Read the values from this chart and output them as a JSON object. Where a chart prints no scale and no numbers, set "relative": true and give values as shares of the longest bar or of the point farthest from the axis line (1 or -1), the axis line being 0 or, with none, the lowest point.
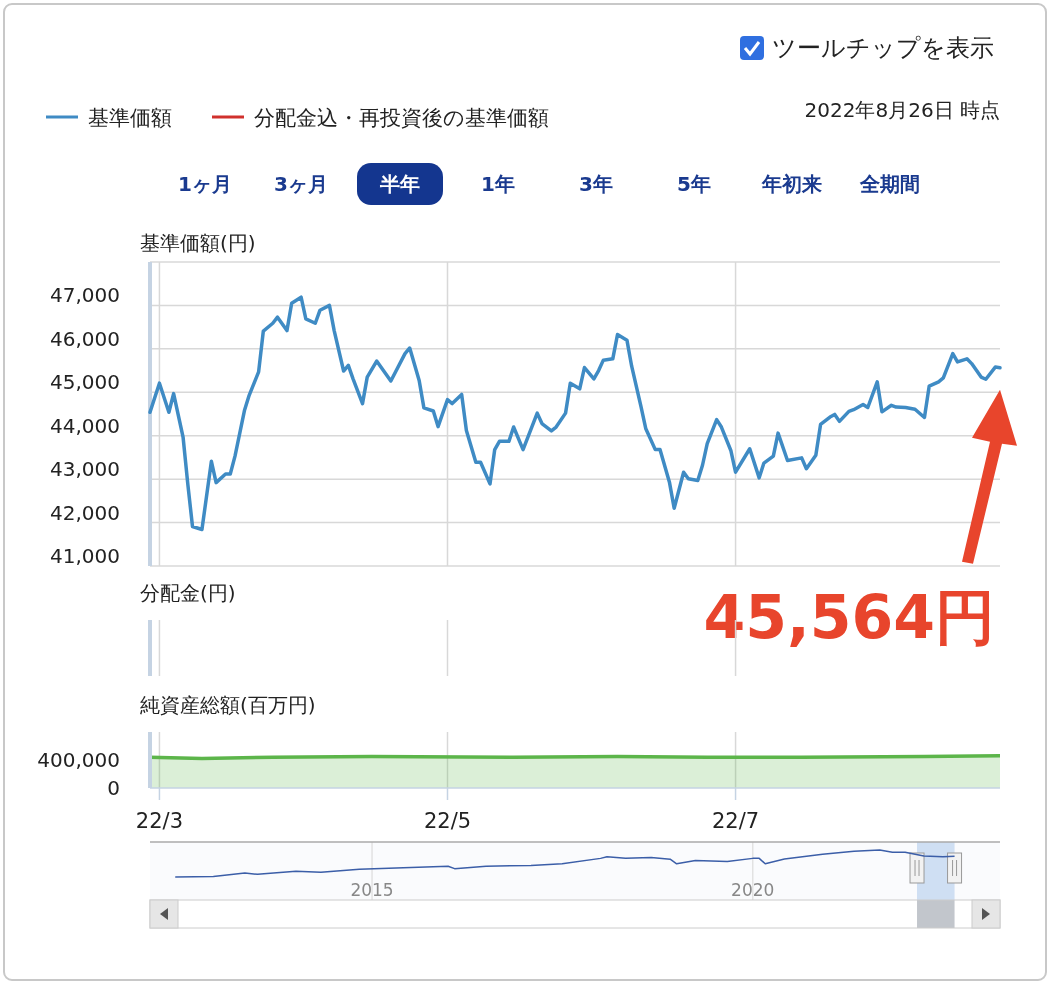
{
  "chart_data": [
    {
      "type": "line",
      "title": "基準価額(円)",
      "legend": "top",
      "annotations": [
        "ツールチップを表示",
        "2022年8月26日 時点",
        "1ヶ月",
        "3ヶ月",
        "半年",
        "1年",
        "3年",
        "5年",
        "年初来",
        "全期間",
        "45,564円"
      ],
      "xlim": [
        "2022-02-27",
        "2022-08-26"
      ],
      "tick_labels": "y",
      "ylim": [
        41000,
        48000
      ],
      "yticks": [
        {
          "value": 41000,
          "label": "41,000"
        },
        {
          "value": 42000,
          "label": "42,000"
        },
        {
          "value": 43000,
          "label": "43,000"
        },
        {
          "value": 44000,
          "label": "44,000"
        },
        {
          "value": 45000,
          "label": "45,000"
        },
        {
          "value": 46000,
          "label": "46,000"
        },
        {
          "value": 47000,
          "label": "47,000"
        }
      ],
      "grid": true,
      "x": [
        "2022-02-27",
        "2022-03-01",
        "2022-03-03",
        "2022-03-04",
        "2022-03-06",
        "2022-03-07",
        "2022-03-08",
        "2022-03-10",
        "2022-03-12",
        "2022-03-13",
        "2022-03-15",
        "2022-03-16",
        "2022-03-17",
        "2022-03-19",
        "2022-03-20",
        "2022-03-22",
        "2022-03-23",
        "2022-03-25",
        "2022-03-26",
        "2022-03-28",
        "2022-03-29",
        "2022-03-31",
        "2022-04-01",
        "2022-04-03",
        "2022-04-04",
        "2022-04-06",
        "2022-04-07",
        "2022-04-09",
        "2022-04-10",
        "2022-04-11",
        "2022-04-13",
        "2022-04-14",
        "2022-04-16",
        "2022-04-19",
        "2022-04-22",
        "2022-04-23",
        "2022-04-25",
        "2022-04-26",
        "2022-04-28",
        "2022-04-29",
        "2022-05-01",
        "2022-05-02",
        "2022-05-04",
        "2022-05-05",
        "2022-05-07",
        "2022-05-08",
        "2022-05-10",
        "2022-05-11",
        "2022-05-12",
        "2022-05-14",
        "2022-05-15",
        "2022-05-17",
        "2022-05-20",
        "2022-05-21",
        "2022-05-23",
        "2022-05-24",
        "2022-05-26",
        "2022-05-27",
        "2022-05-29",
        "2022-05-30",
        "2022-06-01",
        "2022-06-02",
        "2022-06-03",
        "2022-06-05",
        "2022-06-06",
        "2022-06-08",
        "2022-06-09",
        "2022-06-11",
        "2022-06-12",
        "2022-06-14",
        "2022-06-15",
        "2022-06-17",
        "2022-06-18",
        "2022-06-20",
        "2022-06-21",
        "2022-06-23",
        "2022-06-24",
        "2022-06-25",
        "2022-06-27",
        "2022-06-28",
        "2022-06-30",
        "2022-07-01",
        "2022-07-04",
        "2022-07-06",
        "2022-07-07",
        "2022-07-09",
        "2022-07-10",
        "2022-07-12",
        "2022-07-15",
        "2022-07-16",
        "2022-07-18",
        "2022-07-19",
        "2022-07-21",
        "2022-07-22",
        "2022-07-23",
        "2022-07-25",
        "2022-07-26",
        "2022-07-28",
        "2022-07-29",
        "2022-07-31",
        "2022-08-01",
        "2022-08-03",
        "2022-08-04",
        "2022-08-06",
        "2022-08-08",
        "2022-08-10",
        "2022-08-11",
        "2022-08-13",
        "2022-08-14",
        "2022-08-16",
        "2022-08-17",
        "2022-08-19",
        "2022-08-20",
        "2022-08-22",
        "2022-08-23",
        "2022-08-25",
        "2022-08-26"
      ],
      "series": [
        {
          "name": "基準価額",
          "color": "#3f8bc4",
          "values": [
            44540,
            45210,
            44540,
            44970,
            43970,
            42890,
            41910,
            41840,
            43410,
            42920,
            43120,
            43120,
            43530,
            44580,
            44930,
            45470,
            46410,
            46590,
            46730,
            46420,
            47050,
            47190,
            46690,
            46590,
            46890,
            47000,
            46420,
            45490,
            45620,
            45310,
            44740,
            45350,
            45720,
            45260,
            45890,
            46020,
            45270,
            44640,
            44570,
            44210,
            44830,
            44740,
            44950,
            44120,
            43390,
            43390,
            42890,
            43680,
            43870,
            43870,
            44200,
            43680,
            44520,
            44280,
            44110,
            44200,
            44520,
            45210,
            45080,
            45570,
            45310,
            45500,
            45740,
            45770,
            46330,
            46200,
            45600,
            44660,
            44160,
            43680,
            43680,
            42930,
            42330,
            43160,
            43010,
            42970,
            43320,
            43820,
            44370,
            44200,
            43660,
            43160,
            43700,
            43030,
            43370,
            43530,
            44060,
            43430,
            43490,
            43240,
            43550,
            44260,
            44430,
            44490,
            44330,
            44560,
            44600,
            44720,
            44650,
            45240,
            44550,
            44700,
            44660,
            44650,
            44610,
            44420,
            45140,
            45240,
            45330,
            45890,
            45700,
            45770,
            45660,
            45350,
            45300,
            45580,
            45564
          ]
        },
        {
          "name": "分配金込・再投資後の基準価額",
          "color": "#d0312d",
          "values": [
            null,
            null,
            null,
            null,
            null,
            null,
            null,
            null,
            null,
            null,
            null,
            null,
            null,
            null,
            null,
            null,
            null,
            null,
            null,
            null,
            null,
            null,
            null,
            null,
            null,
            null,
            null,
            null,
            null,
            null,
            null,
            null,
            null,
            null,
            null,
            null,
            null,
            null,
            null,
            null,
            null,
            null,
            null,
            null,
            null,
            null,
            null,
            null,
            null,
            null,
            null,
            null,
            null,
            null,
            null,
            null,
            null,
            null,
            null,
            null,
            null,
            null,
            null,
            null,
            null,
            null,
            null,
            null,
            null,
            null,
            null,
            null,
            null,
            null,
            null,
            null,
            null,
            null,
            null,
            null,
            null,
            null,
            null,
            null,
            null,
            null,
            null,
            null,
            null,
            null,
            null,
            null,
            null,
            null,
            null,
            null,
            null,
            null,
            null,
            null,
            null,
            null,
            null,
            null,
            null,
            null,
            null,
            null,
            null,
            null,
            null,
            null,
            null,
            null,
            null,
            null,
            null
          ]
        }
      ]
    },
    {
      "type": "other",
      "title": "分配金(円)"
    },
    {
      "type": "area",
      "title": "純資産総額(百万円)",
      "color": "#5cb54a",
      "xlim": [
        "2022-02-27",
        "2022-08-26"
      ],
      "xticks": [
        {
          "value": "2022-03-01",
          "label": "22/3"
        },
        {
          "value": "2022-05-01",
          "label": "22/5"
        },
        {
          "value": "2022-07-01",
          "label": "22/7"
        }
      ],
      "ylim": [
        0,
        800000
      ],
      "yticks": [
        {
          "value": 0,
          "label": "0"
        },
        {
          "value": 400000,
          "label": "400,000"
        }
      ],
      "grid": "x",
      "x": [
        "2022-02-27",
        "2022-03-10",
        "2022-03-25",
        "2022-04-15",
        "2022-05-15",
        "2022-06-06",
        "2022-06-25",
        "2022-07-15",
        "2022-08-10",
        "2022-08-26"
      ],
      "values": [
        440000,
        420000,
        440000,
        450000,
        440000,
        450000,
        440000,
        440000,
        450000,
        460000
      ]
    },
    {
      "type": "line",
      "relative": true,
      "color": "#3b5ea8",
      "xlim": [
        "2012-02-01",
        "2023-04-01"
      ],
      "xticks": [
        {
          "value": "2015-01-01",
          "label": "2015"
        },
        {
          "value": "2020-01-01",
          "label": "2020"
        }
      ],
      "grid": "x",
      "bands": [
        {
          "axis": "x",
          "from": "2022-02-27",
          "to": "2022-08-26",
          "color": "#cfdff3"
        }
      ],
      "x": [
        "2012-06",
        "2012-12",
        "2013-05",
        "2013-07",
        "2014-01",
        "2014-05",
        "2014-11",
        "2015-06",
        "2016-01",
        "2016-02",
        "2016-07",
        "2017-02",
        "2017-07",
        "2018-01",
        "2018-02",
        "2018-05",
        "2018-09",
        "2018-12",
        "2019-01",
        "2019-04",
        "2019-09",
        "2020-01",
        "2020-02",
        "2020-03",
        "2020-06",
        "2020-12",
        "2021-05",
        "2021-09",
        "2021-11",
        "2022-01",
        "2022-04",
        "2022-07",
        "2022-08-26"
      ],
      "values": [
        0,
        0.02,
        0.15,
        0.1,
        0.21,
        0.18,
        0.29,
        0.34,
        0.4,
        0.31,
        0.4,
        0.43,
        0.49,
        0.69,
        0.75,
        0.69,
        0.72,
        0.66,
        0.49,
        0.61,
        0.57,
        0.69,
        0.69,
        0.49,
        0.67,
        0.84,
        0.95,
        1,
        0.92,
        0.92,
        0.78,
        0.75,
        0.77
      ]
    }
  ]
}
